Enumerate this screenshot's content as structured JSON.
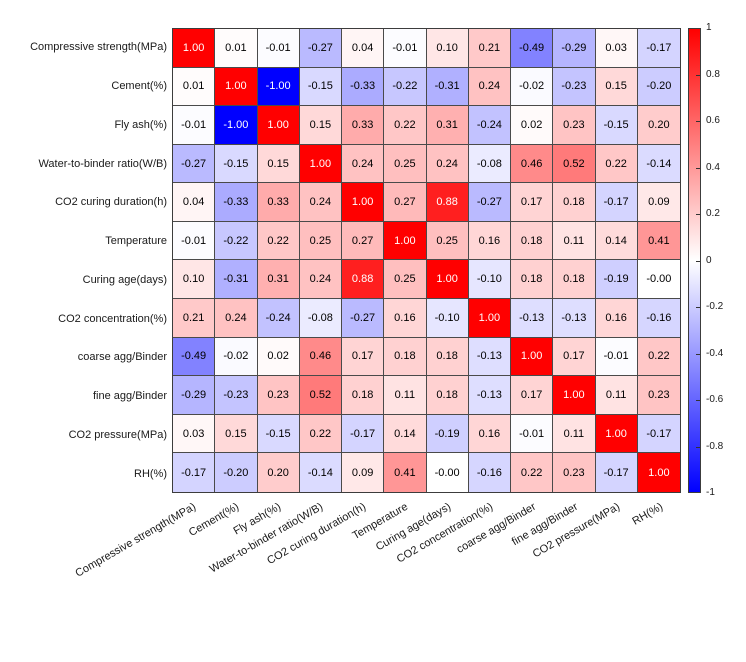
{
  "figure": {
    "background_color": "#ffffff"
  },
  "chart_data": {
    "type": "heatmap",
    "title": "",
    "variables": [
      "Compressive strength(MPa)",
      "Cement(%)",
      "Fly ash(%)",
      "Water-to-binder ratio(W/B)",
      "CO2 curing duration(h)",
      "Temperature",
      "Curing age(days)",
      "CO2 concentration(%)",
      "coarse agg/Binder",
      "fine agg/Binder",
      "CO2 pressure(MPa)",
      "RH(%)"
    ],
    "matrix": [
      [
        "1.00",
        "0.01",
        "-0.01",
        "-0.27",
        "0.04",
        "-0.01",
        "0.10",
        "0.21",
        "-0.49",
        "-0.29",
        "0.03",
        "-0.17"
      ],
      [
        "0.01",
        "1.00",
        "-1.00",
        "-0.15",
        "-0.33",
        "-0.22",
        "-0.31",
        "0.24",
        "-0.02",
        "-0.23",
        "0.15",
        "-0.20"
      ],
      [
        "-0.01",
        "-1.00",
        "1.00",
        "0.15",
        "0.33",
        "0.22",
        "0.31",
        "-0.24",
        "0.02",
        "0.23",
        "-0.15",
        "0.20"
      ],
      [
        "-0.27",
        "-0.15",
        "0.15",
        "1.00",
        "0.24",
        "0.25",
        "0.24",
        "-0.08",
        "0.46",
        "0.52",
        "0.22",
        "-0.14"
      ],
      [
        "0.04",
        "-0.33",
        "0.33",
        "0.24",
        "1.00",
        "0.27",
        "0.88",
        "-0.27",
        "0.17",
        "0.18",
        "-0.17",
        "0.09"
      ],
      [
        "-0.01",
        "-0.22",
        "0.22",
        "0.25",
        "0.27",
        "1.00",
        "0.25",
        "0.16",
        "0.18",
        "0.11",
        "0.14",
        "0.41"
      ],
      [
        "0.10",
        "-0.31",
        "0.31",
        "0.24",
        "0.88",
        "0.25",
        "1.00",
        "-0.10",
        "0.18",
        "0.18",
        "-0.19",
        "-0.00"
      ],
      [
        "0.21",
        "0.24",
        "-0.24",
        "-0.08",
        "-0.27",
        "0.16",
        "-0.10",
        "1.00",
        "-0.13",
        "-0.13",
        "0.16",
        "-0.16"
      ],
      [
        "-0.49",
        "-0.02",
        "0.02",
        "0.46",
        "0.17",
        "0.18",
        "0.18",
        "-0.13",
        "1.00",
        "0.17",
        "-0.01",
        "0.22"
      ],
      [
        "-0.29",
        "-0.23",
        "0.23",
        "0.52",
        "0.18",
        "0.11",
        "0.18",
        "-0.13",
        "0.17",
        "1.00",
        "0.11",
        "0.23"
      ],
      [
        "0.03",
        "0.15",
        "-0.15",
        "0.22",
        "-0.17",
        "0.14",
        "-0.19",
        "0.16",
        "-0.01",
        "0.11",
        "1.00",
        "-0.17"
      ],
      [
        "-0.17",
        "-0.20",
        "0.20",
        "-0.14",
        "0.09",
        "0.41",
        "-0.00",
        "-0.16",
        "0.22",
        "0.23",
        "-0.17",
        "1.00"
      ]
    ],
    "value_range": [
      -1,
      1
    ],
    "colormap": {
      "max_color": "#ff0000",
      "mid_color": "#ffffff",
      "min_color": "#0000ff"
    },
    "cell_text": {
      "default_color": "#000000",
      "high_value_color": "#ffffff",
      "white_text_abs_threshold": 0.7
    },
    "grid_on": true,
    "axis_label_rotation_deg": 30,
    "colorbar": {
      "position": "right",
      "tick_labels": [
        "1",
        "0.8",
        "0.6",
        "0.4",
        "0.2",
        "0",
        "-0.2",
        "-0.4",
        "-0.6",
        "-0.8",
        "-1"
      ]
    }
  }
}
